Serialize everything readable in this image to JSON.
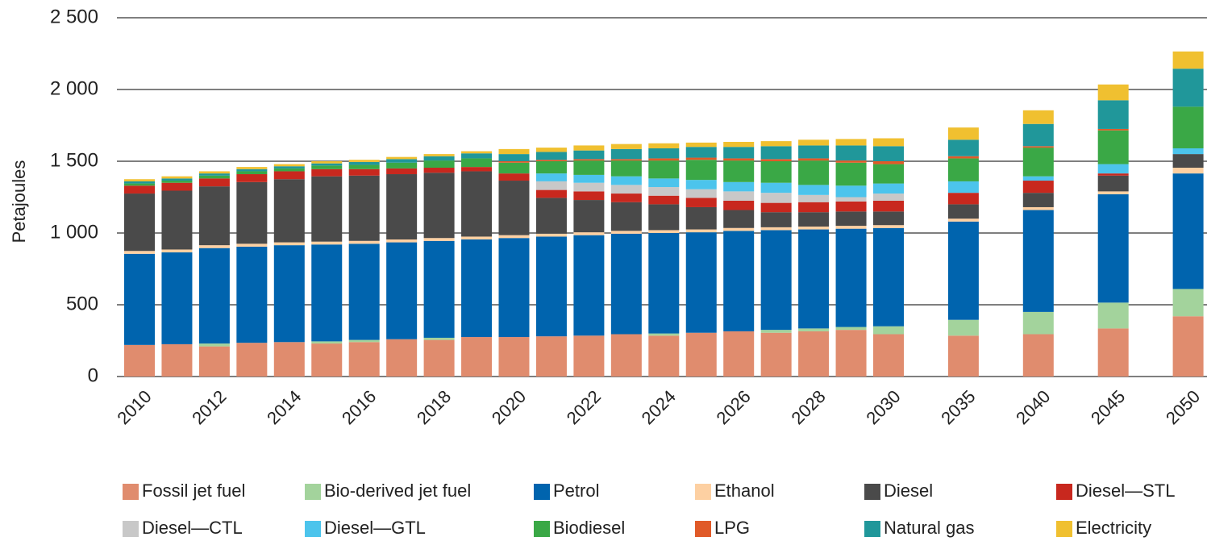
{
  "chart_data": {
    "type": "stacked-bar",
    "y_label": "Petajoules",
    "categories": [
      "2010",
      null,
      "2012",
      null,
      "2014",
      null,
      "2016",
      null,
      "2018",
      null,
      "2020",
      null,
      "2022",
      null,
      "2024",
      null,
      "2026",
      null,
      "2028",
      null,
      "2030",
      "2035",
      "2040",
      "2045",
      "2050"
    ],
    "ylim": [
      0,
      2500
    ],
    "yticks": [
      0,
      500,
      {
        "value": 1000,
        "label": "1 000"
      },
      {
        "value": 1500,
        "label": "1 500"
      },
      {
        "value": 2000,
        "label": "2 000"
      },
      {
        "value": 2500,
        "label": "2 500"
      }
    ],
    "grid": true,
    "legend": "bottom",
    "series": [
      {
        "name": "Fossil jet fuel",
        "color": "#e08c6e",
        "values": [
          220,
          225,
          210,
          235,
          240,
          230,
          240,
          260,
          255,
          275,
          275,
          280,
          285,
          295,
          285,
          305,
          315,
          305,
          315,
          325,
          295,
          285,
          295,
          335,
          420
        ]
      },
      {
        "name": "Bio-derived jet fuel",
        "color": "#a3d39c",
        "values": [
          0,
          0,
          20,
          0,
          0,
          15,
          15,
          0,
          15,
          0,
          0,
          0,
          0,
          0,
          15,
          0,
          0,
          20,
          20,
          20,
          55,
          110,
          155,
          180,
          190
        ]
      },
      {
        "name": "Petrol",
        "color": "#0064ae",
        "values": [
          635,
          640,
          665,
          670,
          675,
          675,
          670,
          675,
          675,
          680,
          690,
          695,
          700,
          700,
          700,
          700,
          700,
          695,
          690,
          685,
          685,
          685,
          710,
          755,
          805
        ]
      },
      {
        "name": "Ethanol",
        "color": "#fdd0a2",
        "values": [
          20,
          20,
          20,
          20,
          20,
          20,
          20,
          20,
          20,
          20,
          20,
          20,
          20,
          20,
          20,
          20,
          20,
          20,
          20,
          20,
          20,
          20,
          20,
          20,
          40
        ]
      },
      {
        "name": "Diesel",
        "color": "#4a4a4a",
        "values": [
          400,
          410,
          410,
          430,
          440,
          455,
          455,
          455,
          455,
          455,
          380,
          250,
          225,
          200,
          180,
          155,
          125,
          105,
          100,
          100,
          95,
          100,
          100,
          110,
          95
        ]
      },
      {
        "name": "Diesel—STL",
        "color": "#c8281e",
        "values": [
          55,
          55,
          55,
          55,
          55,
          50,
          45,
          40,
          35,
          30,
          50,
          55,
          60,
          60,
          60,
          65,
          65,
          65,
          70,
          70,
          75,
          80,
          85,
          15,
          0
        ]
      },
      {
        "name": "Diesel—CTL",
        "color": "#c8c8c8",
        "values": [
          0,
          0,
          0,
          0,
          0,
          0,
          0,
          0,
          0,
          0,
          0,
          60,
          60,
          60,
          60,
          60,
          65,
          70,
          50,
          30,
          50,
          0,
          0,
          0,
          0
        ]
      },
      {
        "name": "Diesel—GTL",
        "color": "#4cc4ec",
        "values": [
          0,
          0,
          0,
          0,
          0,
          0,
          0,
          0,
          0,
          0,
          0,
          55,
          55,
          60,
          60,
          65,
          65,
          70,
          70,
          80,
          70,
          80,
          30,
          65,
          40
        ]
      },
      {
        "name": "Biodiesel",
        "color": "#3aa846",
        "values": [
          15,
          15,
          20,
          20,
          20,
          25,
          30,
          40,
          50,
          60,
          75,
          85,
          100,
          110,
          125,
          140,
          150,
          150,
          170,
          160,
          135,
          160,
          200,
          235,
          290
        ]
      },
      {
        "name": "LPG",
        "color": "#e05a28",
        "values": [
          0,
          0,
          0,
          0,
          0,
          0,
          0,
          0,
          0,
          0,
          10,
          10,
          10,
          10,
          15,
          15,
          15,
          15,
          15,
          15,
          20,
          15,
          10,
          10,
          0
        ]
      },
      {
        "name": "Natural gas",
        "color": "#20979a",
        "values": [
          15,
          15,
          15,
          15,
          15,
          15,
          20,
          25,
          30,
          35,
          50,
          55,
          60,
          70,
          70,
          75,
          80,
          90,
          90,
          105,
          105,
          115,
          155,
          200,
          265
        ]
      },
      {
        "name": "Electricity",
        "color": "#f0c030",
        "values": [
          15,
          15,
          15,
          15,
          15,
          15,
          15,
          15,
          15,
          15,
          35,
          30,
          35,
          35,
          35,
          30,
          35,
          35,
          40,
          45,
          55,
          85,
          95,
          110,
          120
        ]
      }
    ]
  }
}
